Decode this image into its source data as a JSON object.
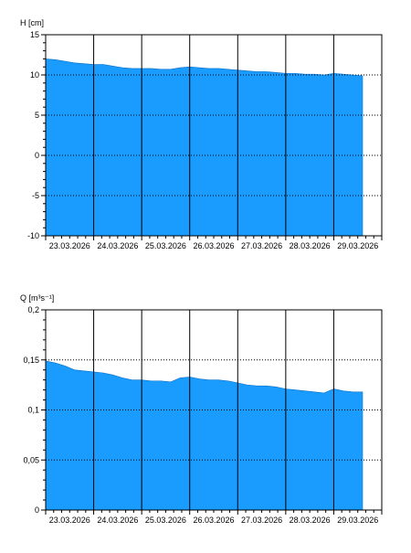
{
  "colors": {
    "fill": "#1a9cff",
    "axis": "#000000",
    "grid": "#000000",
    "background": "#ffffff"
  },
  "chart_data": [
    {
      "type": "area",
      "ylabel": "H [cm]",
      "ylim": [
        -10,
        15
      ],
      "yticks": [
        "15",
        "10",
        "5",
        "0",
        "-5",
        "-10"
      ],
      "ytick_values": [
        15,
        10,
        5,
        0,
        -5,
        -10
      ],
      "xlim": [
        0,
        7.0
      ],
      "date_labels": [
        "23.03.2026",
        "24.03.2026",
        "25.03.2026",
        "26.03.2026",
        "27.03.2026",
        "28.03.2026",
        "29.03.2026"
      ],
      "grid": {
        "vertical": "solid",
        "horizontal": "dotted"
      },
      "x": [
        0.0,
        0.2,
        0.4,
        0.6,
        0.8,
        1.0,
        1.2,
        1.4,
        1.6,
        1.8,
        2.0,
        2.2,
        2.4,
        2.6,
        2.8,
        3.0,
        3.2,
        3.4,
        3.6,
        3.8,
        4.0,
        4.2,
        4.4,
        4.6,
        4.8,
        5.0,
        5.2,
        5.4,
        5.6,
        5.8,
        6.0,
        6.2,
        6.4,
        6.6
      ],
      "values": [
        12.0,
        11.9,
        11.7,
        11.5,
        11.4,
        11.3,
        11.3,
        11.1,
        10.9,
        10.8,
        10.8,
        10.8,
        10.7,
        10.7,
        10.9,
        11.0,
        10.9,
        10.8,
        10.8,
        10.7,
        10.6,
        10.5,
        10.4,
        10.4,
        10.3,
        10.2,
        10.2,
        10.1,
        10.1,
        10.0,
        10.2,
        10.1,
        10.0,
        9.9
      ]
    },
    {
      "type": "area",
      "ylabel": "Q [m³s⁻¹]",
      "ylim": [
        0,
        0.2
      ],
      "yticks": [
        "0,2",
        "0,15",
        "0,1",
        "0,05",
        "0"
      ],
      "ytick_values": [
        0.2,
        0.15,
        0.1,
        0.05,
        0
      ],
      "xlim": [
        0,
        7.0
      ],
      "date_labels": [
        "23.03.2026",
        "24.03.2026",
        "25.03.2026",
        "26.03.2026",
        "27.03.2026",
        "28.03.2026",
        "29.03.2026"
      ],
      "grid": {
        "vertical": "solid",
        "horizontal": "dotted"
      },
      "x": [
        0.0,
        0.2,
        0.4,
        0.6,
        0.8,
        1.0,
        1.2,
        1.4,
        1.6,
        1.8,
        2.0,
        2.2,
        2.4,
        2.6,
        2.8,
        3.0,
        3.2,
        3.4,
        3.6,
        3.8,
        4.0,
        4.2,
        4.4,
        4.6,
        4.8,
        5.0,
        5.2,
        5.4,
        5.6,
        5.8,
        6.0,
        6.2,
        6.4,
        6.6
      ],
      "values": [
        0.149,
        0.147,
        0.144,
        0.14,
        0.139,
        0.138,
        0.137,
        0.135,
        0.132,
        0.13,
        0.13,
        0.129,
        0.129,
        0.128,
        0.132,
        0.133,
        0.131,
        0.13,
        0.13,
        0.129,
        0.127,
        0.125,
        0.124,
        0.124,
        0.123,
        0.121,
        0.12,
        0.119,
        0.118,
        0.117,
        0.121,
        0.119,
        0.118,
        0.118
      ]
    }
  ]
}
